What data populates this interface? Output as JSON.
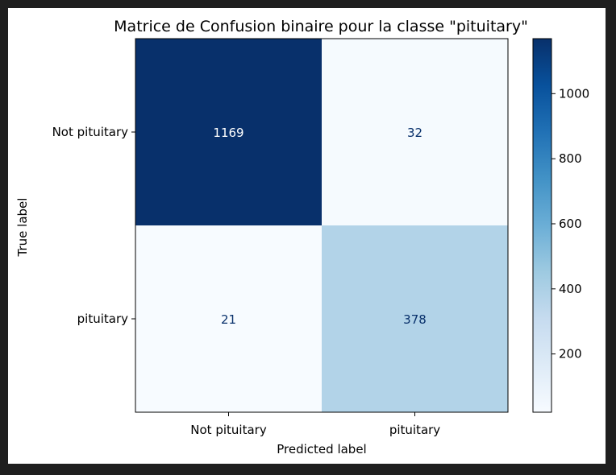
{
  "chart_data": {
    "type": "heatmap",
    "title": "Matrice de Confusion binaire pour la classe \"pituitary\"",
    "xlabel": "Predicted label",
    "ylabel": "True label",
    "row_labels": [
      "Not pituitary",
      "pituitary"
    ],
    "col_labels": [
      "Not pituitary",
      "pituitary"
    ],
    "matrix": [
      [
        1169,
        32
      ],
      [
        21,
        378
      ]
    ],
    "colormap": "Blues",
    "colorbar": {
      "ticks": [
        200,
        400,
        600,
        800,
        1000
      ],
      "range": [
        21,
        1169
      ]
    },
    "colors": {
      "max": "#08306b",
      "min": "#f7fbff",
      "text_dark_cell": "#ffffff",
      "text_light_cell": "#08306b"
    }
  }
}
